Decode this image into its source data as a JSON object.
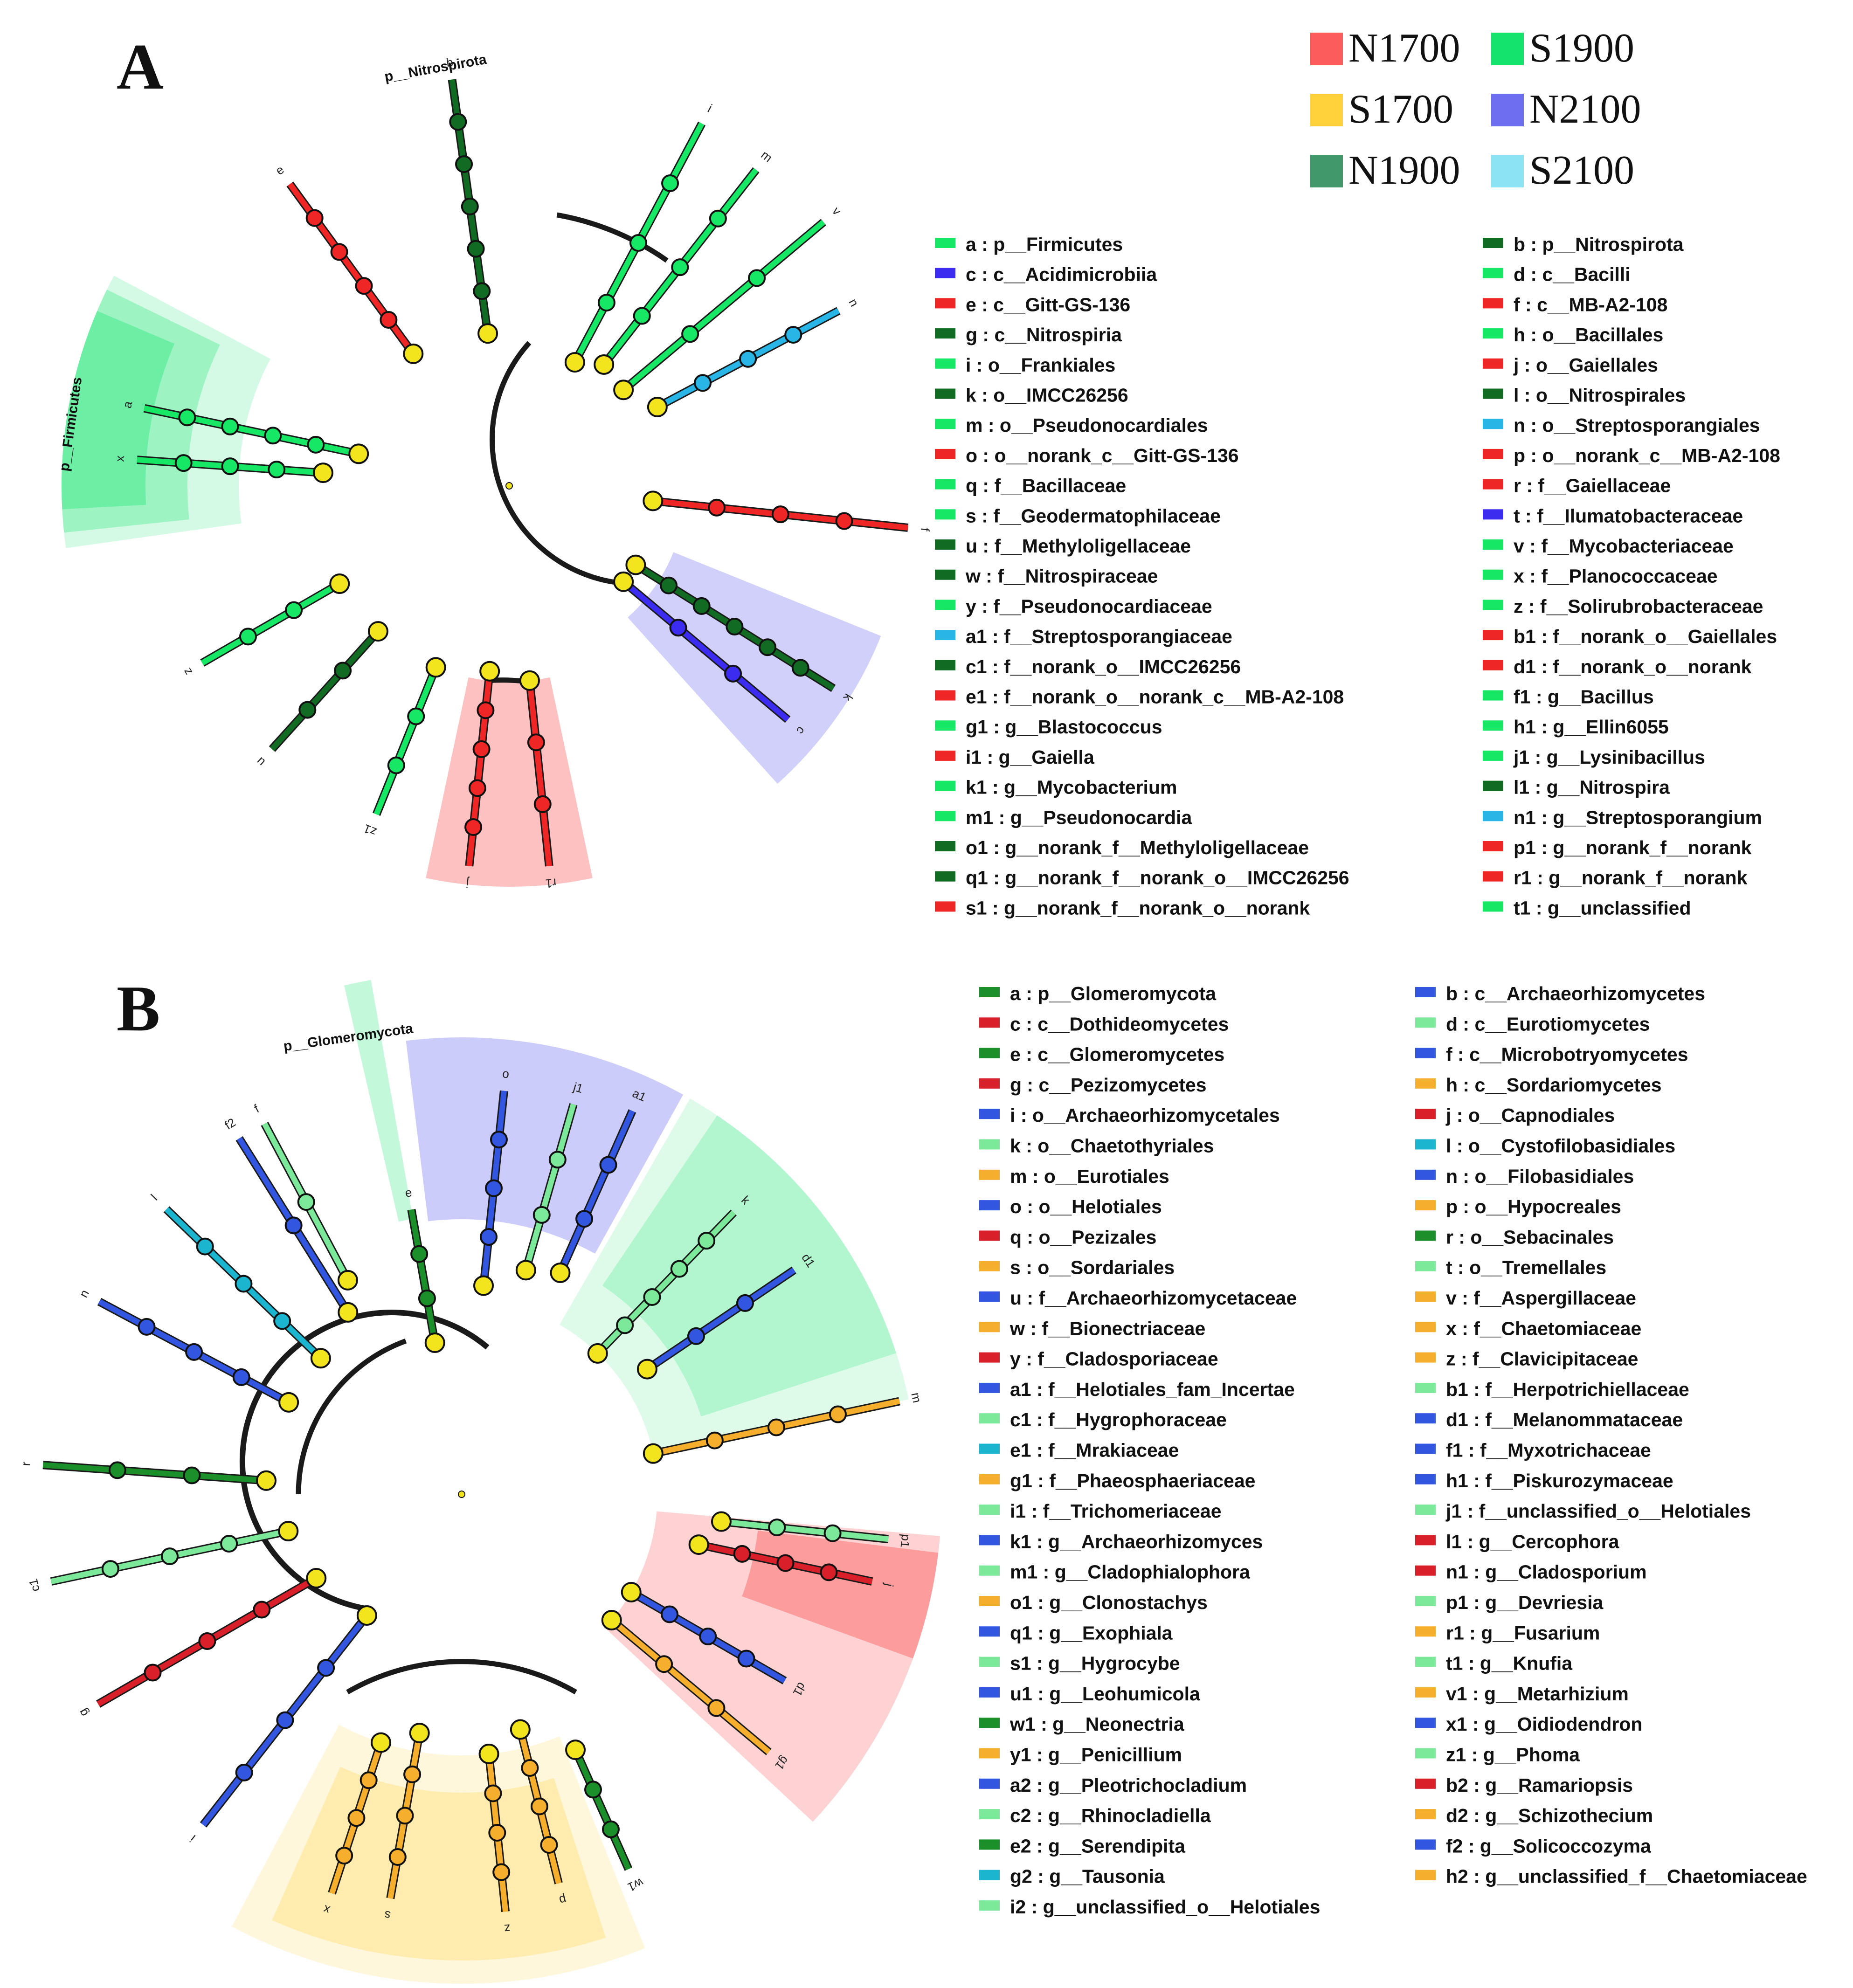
{
  "colors": {
    "N1700": "#fd5c5c",
    "S1700": "#ffd13b",
    "N1900": "#41996b",
    "S1900": "#12e46d",
    "N2100": "#6e6ef0",
    "S2100": "#8be3f4",
    "node_yellow": "#f2e41d",
    "branch_black": "#1a1a1a",
    "a_dark_green": "#116b22",
    "a_red": "#ef2626",
    "a_blue": "#3c2cf0",
    "a_cyan": "#29b6e6",
    "a_green": "#16e866",
    "b_green": "#1a8f2a",
    "b_red": "#d9202a",
    "b_blue": "#3356e0",
    "b_light_green": "#7be89a",
    "b_orange": "#f6ae2d",
    "b_cyan": "#1bb5d0"
  },
  "group_legend": [
    {
      "key": "N1700",
      "label": "N1700"
    },
    {
      "key": "S1900",
      "label": "S1900"
    },
    {
      "key": "S1700",
      "label": "S1700"
    },
    {
      "key": "N2100",
      "label": "N2100"
    },
    {
      "key": "N1900",
      "label": "N1900"
    },
    {
      "key": "S2100",
      "label": "S2100"
    }
  ],
  "panel_a": {
    "letter": "A",
    "phylum_labels": [
      "p__Nitrospirota",
      "p__Firmicutes"
    ],
    "legend": [
      {
        "text": "a : p__Firmicutes",
        "color": "a_green"
      },
      {
        "text": "b : p__Nitrospirota",
        "color": "a_dark_green"
      },
      {
        "text": "c : c__Acidimicrobiia",
        "color": "a_blue"
      },
      {
        "text": "d : c__Bacilli",
        "color": "a_green"
      },
      {
        "text": "e : c__Gitt-GS-136",
        "color": "a_red"
      },
      {
        "text": "f : c__MB-A2-108",
        "color": "a_red"
      },
      {
        "text": "g : c__Nitrospiria",
        "color": "a_dark_green"
      },
      {
        "text": "h : o__Bacillales",
        "color": "a_green"
      },
      {
        "text": "i : o__Frankiales",
        "color": "a_green"
      },
      {
        "text": "j : o__Gaiellales",
        "color": "a_red"
      },
      {
        "text": "k : o__IMCC26256",
        "color": "a_dark_green"
      },
      {
        "text": "l : o__Nitrospirales",
        "color": "a_dark_green"
      },
      {
        "text": "m : o__Pseudonocardiales",
        "color": "a_green"
      },
      {
        "text": "n : o__Streptosporangiales",
        "color": "a_cyan"
      },
      {
        "text": "o : o__norank_c__Gitt-GS-136",
        "color": "a_red"
      },
      {
        "text": "p : o__norank_c__MB-A2-108",
        "color": "a_red"
      },
      {
        "text": "q : f__Bacillaceae",
        "color": "a_green"
      },
      {
        "text": "r : f__Gaiellaceae",
        "color": "a_red"
      },
      {
        "text": "s : f__Geodermatophilaceae",
        "color": "a_green"
      },
      {
        "text": "t : f__Ilumatobacteraceae",
        "color": "a_blue"
      },
      {
        "text": "u : f__Methyloligellaceae",
        "color": "a_dark_green"
      },
      {
        "text": "v : f__Mycobacteriaceae",
        "color": "a_green"
      },
      {
        "text": "w : f__Nitrospiraceae",
        "color": "a_dark_green"
      },
      {
        "text": "x : f__Planococcaceae",
        "color": "a_green"
      },
      {
        "text": "y : f__Pseudonocardiaceae",
        "color": "a_green"
      },
      {
        "text": "z : f__Solirubrobacteraceae",
        "color": "a_green"
      },
      {
        "text": "a1 : f__Streptosporangiaceae",
        "color": "a_cyan"
      },
      {
        "text": "b1 : f__norank_o__Gaiellales",
        "color": "a_red"
      },
      {
        "text": "c1 : f__norank_o__IMCC26256",
        "color": "a_dark_green"
      },
      {
        "text": "d1 : f__norank_o__norank",
        "color": "a_red"
      },
      {
        "text": "e1 : f__norank_o__norank_c__MB-A2-108",
        "color": "a_red"
      },
      {
        "text": "f1 : g__Bacillus",
        "color": "a_green"
      },
      {
        "text": "g1 : g__Blastococcus",
        "color": "a_green"
      },
      {
        "text": "h1 : g__Ellin6055",
        "color": "a_green"
      },
      {
        "text": "i1 : g__Gaiella",
        "color": "a_red"
      },
      {
        "text": "j1 : g__Lysinibacillus",
        "color": "a_green"
      },
      {
        "text": "k1 : g__Mycobacterium",
        "color": "a_green"
      },
      {
        "text": "l1 : g__Nitrospira",
        "color": "a_dark_green"
      },
      {
        "text": "m1 : g__Pseudonocardia",
        "color": "a_green"
      },
      {
        "text": "n1 : g__Streptosporangium",
        "color": "a_cyan"
      },
      {
        "text": "o1 : g__norank_f__Methyloligellaceae",
        "color": "a_dark_green"
      },
      {
        "text": "p1 : g__norank_f__norank",
        "color": "a_red"
      },
      {
        "text": "q1 : g__norank_f__norank_o__IMCC26256",
        "color": "a_dark_green"
      },
      {
        "text": "r1 : g__norank_f__norank",
        "color": "a_red"
      },
      {
        "text": "s1 : g__norank_f__norank_o__norank",
        "color": "a_red"
      },
      {
        "text": "t1 : g__unclassified",
        "color": "a_green"
      }
    ]
  },
  "panel_b": {
    "letter": "B",
    "phylum_labels": [
      "p__Glomeromycota"
    ],
    "legend": [
      {
        "text": "a : p__Glomeromycota",
        "color": "b_green"
      },
      {
        "text": "b : c__Archaeorhizomycetes",
        "color": "b_blue"
      },
      {
        "text": "c : c__Dothideomycetes",
        "color": "b_red"
      },
      {
        "text": "d : c__Eurotiomycetes",
        "color": "b_light_green"
      },
      {
        "text": "e : c__Glomeromycetes",
        "color": "b_green"
      },
      {
        "text": "f : c__Microbotryomycetes",
        "color": "b_blue"
      },
      {
        "text": "g : c__Pezizomycetes",
        "color": "b_red"
      },
      {
        "text": "h : c__Sordariomycetes",
        "color": "b_orange"
      },
      {
        "text": "i : o__Archaeorhizomycetales",
        "color": "b_blue"
      },
      {
        "text": "j : o__Capnodiales",
        "color": "b_red"
      },
      {
        "text": "k : o__Chaetothyriales",
        "color": "b_light_green"
      },
      {
        "text": "l : o__Cystofilobasidiales",
        "color": "b_cyan"
      },
      {
        "text": "m : o__Eurotiales",
        "color": "b_orange"
      },
      {
        "text": "n : o__Filobasidiales",
        "color": "b_blue"
      },
      {
        "text": "o : o__Helotiales",
        "color": "b_blue"
      },
      {
        "text": "p : o__Hypocreales",
        "color": "b_orange"
      },
      {
        "text": "q : o__Pezizales",
        "color": "b_red"
      },
      {
        "text": "r : o__Sebacinales",
        "color": "b_green"
      },
      {
        "text": "s : o__Sordariales",
        "color": "b_orange"
      },
      {
        "text": "t : o__Tremellales",
        "color": "b_light_green"
      },
      {
        "text": "u : f__Archaeorhizomycetaceae",
        "color": "b_blue"
      },
      {
        "text": "v : f__Aspergillaceae",
        "color": "b_orange"
      },
      {
        "text": "w : f__Bionectriaceae",
        "color": "b_orange"
      },
      {
        "text": "x : f__Chaetomiaceae",
        "color": "b_orange"
      },
      {
        "text": "y : f__Cladosporiaceae",
        "color": "b_red"
      },
      {
        "text": "z : f__Clavicipitaceae",
        "color": "b_orange"
      },
      {
        "text": "a1 : f__Helotiales_fam_Incertae",
        "color": "b_blue"
      },
      {
        "text": "b1 : f__Herpotrichiellaceae",
        "color": "b_light_green"
      },
      {
        "text": "c1 : f__Hygrophoraceae",
        "color": "b_light_green"
      },
      {
        "text": "d1 : f__Melanommataceae",
        "color": "b_blue"
      },
      {
        "text": "e1 : f__Mrakiaceae",
        "color": "b_cyan"
      },
      {
        "text": "f1 : f__Myxotrichaceae",
        "color": "b_blue"
      },
      {
        "text": "g1 : f__Phaeosphaeriaceae",
        "color": "b_orange"
      },
      {
        "text": "h1 : f__Piskurozymaceae",
        "color": "b_blue"
      },
      {
        "text": "i1 : f__Trichomeriaceae",
        "color": "b_light_green"
      },
      {
        "text": "j1 : f__unclassified_o__Helotiales",
        "color": "b_light_green"
      },
      {
        "text": "k1 : g__Archaeorhizomyces",
        "color": "b_blue"
      },
      {
        "text": "l1 : g__Cercophora",
        "color": "b_red"
      },
      {
        "text": "m1 : g__Cladophialophora",
        "color": "b_light_green"
      },
      {
        "text": "n1 : g__Cladosporium",
        "color": "b_red"
      },
      {
        "text": "o1 : g__Clonostachys",
        "color": "b_orange"
      },
      {
        "text": "p1 : g__Devriesia",
        "color": "b_light_green"
      },
      {
        "text": "q1 : g__Exophiala",
        "color": "b_blue"
      },
      {
        "text": "r1 : g__Fusarium",
        "color": "b_orange"
      },
      {
        "text": "s1 : g__Hygrocybe",
        "color": "b_light_green"
      },
      {
        "text": "t1 : g__Knufia",
        "color": "b_light_green"
      },
      {
        "text": "u1 : g__Leohumicola",
        "color": "b_blue"
      },
      {
        "text": "v1 : g__Metarhizium",
        "color": "b_orange"
      },
      {
        "text": "w1 : g__Neonectria",
        "color": "b_green"
      },
      {
        "text": "x1 : g__Oidiodendron",
        "color": "b_blue"
      },
      {
        "text": "y1 : g__Penicillium",
        "color": "b_orange"
      },
      {
        "text": "z1 : g__Phoma",
        "color": "b_light_green"
      },
      {
        "text": "a2 : g__Pleotrichocladium",
        "color": "b_blue"
      },
      {
        "text": "b2 : g__Ramariopsis",
        "color": "b_red"
      },
      {
        "text": "c2 : g__Rhinocladiella",
        "color": "b_light_green"
      },
      {
        "text": "d2 : g__Schizothecium",
        "color": "b_orange"
      },
      {
        "text": "e2 : g__Serendipita",
        "color": "b_green"
      },
      {
        "text": "f2 : g__Solicoccozyma",
        "color": "b_blue"
      },
      {
        "text": "g2 : g__Tausonia",
        "color": "b_cyan"
      },
      {
        "text": "h2 : g__unclassified_f__Chaetomiaceae",
        "color": "b_orange"
      },
      {
        "text": "i2 : g__unclassified_o__Helotiales",
        "color": "b_light_green"
      }
    ]
  }
}
